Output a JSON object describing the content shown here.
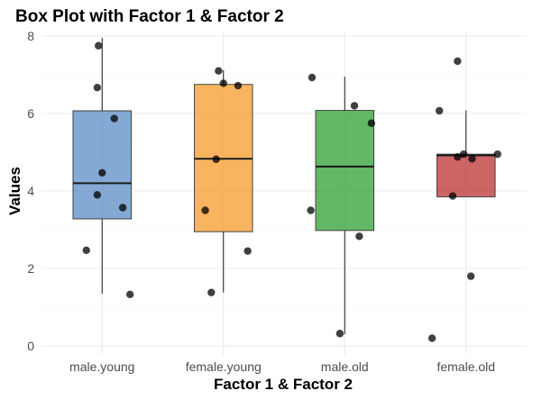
{
  "chart_data": {
    "type": "boxplot",
    "title": "Box Plot with Factor 1 & Factor 2",
    "xlabel": "Factor 1 & Factor 2",
    "ylabel": "Values",
    "ylim": [
      0,
      8
    ],
    "yticks": [
      0,
      2,
      4,
      6,
      8
    ],
    "grid": true,
    "legend": "none",
    "categories": [
      "male.young",
      "female.young",
      "male.old",
      "female.old"
    ],
    "colors": [
      "#4e84c2",
      "#f7941d",
      "#1f9a22",
      "#b82424"
    ],
    "boxes": [
      {
        "category": "male.young",
        "whisker_low": 1.35,
        "q1": 3.28,
        "median": 4.2,
        "q3": 6.07,
        "whisker_high": 7.95
      },
      {
        "category": "female.young",
        "whisker_low": 1.38,
        "q1": 2.95,
        "median": 4.83,
        "q3": 6.75,
        "whisker_high": 7.12
      },
      {
        "category": "male.old",
        "whisker_low": 0.3,
        "q1": 2.98,
        "median": 4.63,
        "q3": 6.08,
        "whisker_high": 6.95
      },
      {
        "category": "female.old",
        "whisker_low": 3.85,
        "q1": 3.85,
        "median": 4.92,
        "q3": 4.95,
        "whisker_high": 6.08
      }
    ],
    "points": [
      {
        "category": "male.young",
        "values": [
          7.75,
          6.67,
          5.87,
          4.47,
          3.9,
          3.57,
          2.47,
          1.33
        ],
        "jitter": [
          -0.03,
          -0.04,
          0.1,
          0.0,
          -0.04,
          0.17,
          -0.13,
          0.23
        ]
      },
      {
        "category": "female.young",
        "values": [
          7.1,
          6.78,
          6.72,
          4.82,
          3.5,
          2.45,
          1.38
        ],
        "jitter": [
          -0.04,
          0.0,
          0.12,
          -0.06,
          -0.15,
          0.2,
          -0.1
        ]
      },
      {
        "category": "male.old",
        "values": [
          6.93,
          6.2,
          5.75,
          3.5,
          2.83,
          0.32
        ],
        "jitter": [
          -0.27,
          0.08,
          0.22,
          -0.28,
          0.12,
          -0.04
        ]
      },
      {
        "category": "female.old",
        "values": [
          7.35,
          6.07,
          4.95,
          4.95,
          4.88,
          4.83,
          3.87,
          1.8,
          0.2
        ],
        "jitter": [
          -0.07,
          -0.22,
          0.26,
          -0.02,
          -0.07,
          0.05,
          -0.11,
          0.04,
          -0.28
        ]
      }
    ]
  }
}
